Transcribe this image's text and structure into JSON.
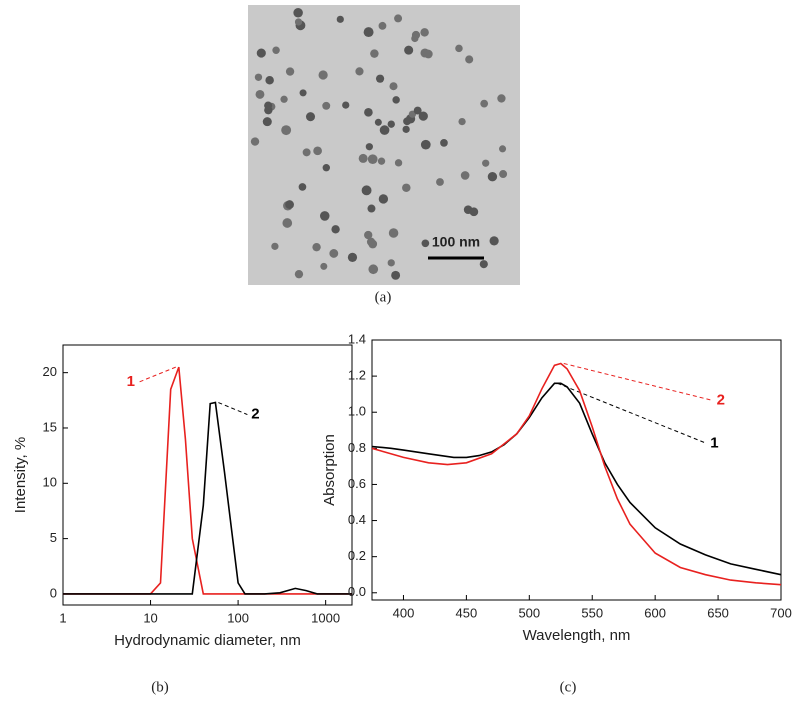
{
  "image": {
    "scale_bar": "100 nm",
    "caption": "(a)"
  },
  "chart_data": [
    {
      "type": "line",
      "caption": "(b)",
      "xlabel": "Hydrodynamic diameter, nm",
      "ylabel": "Intensity, %",
      "xscale": "log",
      "xlim": [
        1,
        2000
      ],
      "xticks": [
        1,
        10,
        100,
        1000
      ],
      "ylim": [
        -1,
        22.5
      ],
      "yticks": [
        0,
        5,
        10,
        15,
        20
      ],
      "series": [
        {
          "name": "1",
          "color": "#e8211f",
          "x": [
            1,
            10,
            13,
            17,
            21,
            25,
            30,
            40,
            2000
          ],
          "values": [
            0,
            0,
            1,
            18.5,
            20.5,
            14,
            5,
            0,
            0
          ]
        },
        {
          "name": "2",
          "color": "#000000",
          "x": [
            1,
            30,
            40,
            48,
            55,
            70,
            100,
            120,
            200,
            300,
            450,
            600,
            800,
            2000
          ],
          "values": [
            0,
            0,
            8,
            17.2,
            17.3,
            11,
            1,
            0,
            0,
            0.1,
            0.5,
            0.3,
            0,
            0
          ]
        }
      ]
    },
    {
      "type": "line",
      "caption": "(c)",
      "xlabel": "Wavelength, nm",
      "ylabel": "Absorption",
      "xlim": [
        375,
        700
      ],
      "xticks": [
        400,
        450,
        500,
        550,
        600,
        650,
        700
      ],
      "ylim": [
        -0.04,
        1.4
      ],
      "yticks": [
        {
          "value": 0,
          "label": "0.0"
        },
        {
          "value": 0.2,
          "label": "0.2"
        },
        {
          "value": 0.4,
          "label": "0.4"
        },
        {
          "value": 0.6,
          "label": "0.6"
        },
        {
          "value": 0.8,
          "label": "0.8"
        },
        {
          "value": 1,
          "label": "1.0"
        },
        {
          "value": 1.2,
          "label": "1.2"
        },
        {
          "value": 1.4,
          "label": "1.4"
        }
      ],
      "series": [
        {
          "name": "1",
          "color": "#000000",
          "x": [
            375,
            390,
            400,
            420,
            440,
            450,
            460,
            470,
            480,
            490,
            500,
            510,
            520,
            525,
            530,
            540,
            550,
            560,
            570,
            580,
            600,
            620,
            640,
            660,
            680,
            700
          ],
          "values": [
            0.81,
            0.8,
            0.79,
            0.77,
            0.75,
            0.75,
            0.76,
            0.78,
            0.82,
            0.88,
            0.97,
            1.08,
            1.16,
            1.16,
            1.14,
            1.05,
            0.88,
            0.72,
            0.6,
            0.5,
            0.36,
            0.27,
            0.21,
            0.16,
            0.13,
            0.1
          ]
        },
        {
          "name": "2",
          "color": "#e8211f",
          "x": [
            375,
            400,
            420,
            435,
            450,
            470,
            490,
            500,
            510,
            520,
            525,
            530,
            540,
            550,
            560,
            570,
            580,
            600,
            620,
            640,
            660,
            680,
            700
          ],
          "values": [
            0.8,
            0.75,
            0.72,
            0.71,
            0.72,
            0.77,
            0.88,
            0.98,
            1.13,
            1.26,
            1.27,
            1.24,
            1.12,
            0.92,
            0.7,
            0.52,
            0.38,
            0.22,
            0.14,
            0.1,
            0.07,
            0.055,
            0.045
          ]
        }
      ]
    }
  ]
}
